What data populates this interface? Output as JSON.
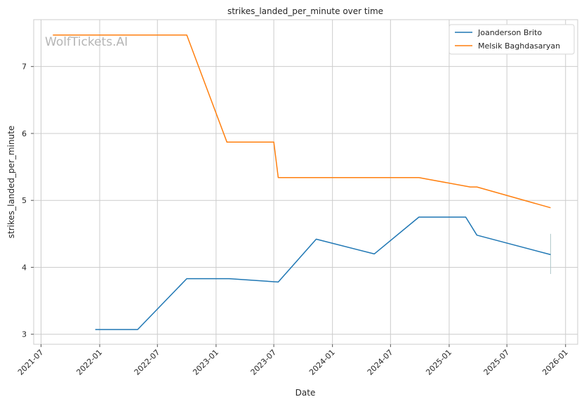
{
  "chart_data": {
    "type": "line",
    "title": "strikes_landed_per_minute over time",
    "xlabel": "Date",
    "ylabel": "strikes_landed_per_minute",
    "watermark": "WolfTickets.AI",
    "x_ticks": [
      "2021-07",
      "2022-01",
      "2022-07",
      "2023-01",
      "2023-07",
      "2024-01",
      "2024-07",
      "2025-01",
      "2025-07",
      "2026-01"
    ],
    "y_ticks": [
      3,
      4,
      5,
      6,
      7
    ],
    "xlim": [
      "2021-06-08",
      "2026-02-08"
    ],
    "ylim": [
      2.85,
      7.7
    ],
    "grid": true,
    "legend_position": "top-right",
    "series": [
      {
        "name": "Joanderson Brito",
        "color": "#1f77b4",
        "points": [
          {
            "x": "2021-12-18",
            "y": 3.07
          },
          {
            "x": "2022-04-30",
            "y": 3.07
          },
          {
            "x": "2022-10-01",
            "y": 3.83
          },
          {
            "x": "2023-02-11",
            "y": 3.83
          },
          {
            "x": "2023-07-15",
            "y": 3.78
          },
          {
            "x": "2023-11-11",
            "y": 4.42
          },
          {
            "x": "2024-05-11",
            "y": 4.2
          },
          {
            "x": "2024-09-28",
            "y": 4.75
          },
          {
            "x": "2025-02-22",
            "y": 4.75
          },
          {
            "x": "2025-03-29",
            "y": 4.48
          },
          {
            "x": "2025-11-15",
            "y": 4.19
          }
        ]
      },
      {
        "name": "Melsik Baghdasaryan",
        "color": "#ff7f0e",
        "points": [
          {
            "x": "2021-08-07",
            "y": 7.47
          },
          {
            "x": "2022-10-01",
            "y": 7.47
          },
          {
            "x": "2023-02-04",
            "y": 5.87
          },
          {
            "x": "2023-07-01",
            "y": 5.87
          },
          {
            "x": "2023-07-15",
            "y": 5.34
          },
          {
            "x": "2024-09-28",
            "y": 5.34
          },
          {
            "x": "2025-03-08",
            "y": 5.2
          },
          {
            "x": "2025-03-29",
            "y": 5.2
          },
          {
            "x": "2025-11-15",
            "y": 4.89
          }
        ]
      }
    ],
    "error_bar": {
      "x": "2025-11-15",
      "y_low": 3.9,
      "y_high": 4.5,
      "color": "#aec7c9"
    }
  }
}
